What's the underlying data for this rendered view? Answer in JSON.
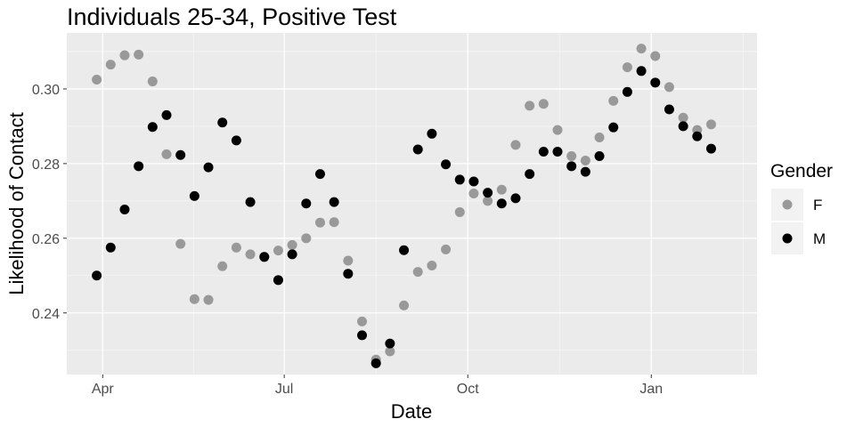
{
  "chart_data": {
    "type": "scatter",
    "title": "Individuals 25-34, Positive Test",
    "xlabel": "Date",
    "ylabel": "Likelihood of Contact",
    "x_ticks": [
      {
        "date": "2020-04-01",
        "label": "Apr"
      },
      {
        "date": "2020-07-01",
        "label": "Jul"
      },
      {
        "date": "2020-10-01",
        "label": "Oct"
      },
      {
        "date": "2021-01-01",
        "label": "Jan"
      }
    ],
    "xlim": [
      "2020-03-14",
      "2021-02-23"
    ],
    "y_ticks": [
      0.24,
      0.26,
      0.28,
      0.3
    ],
    "ylim": [
      0.2235,
      0.315
    ],
    "grid": true,
    "legend": {
      "title": "Gender",
      "position": "right"
    },
    "series": [
      {
        "name": "F",
        "color": "#999999",
        "points": [
          [
            "2020-03-29",
            0.3025
          ],
          [
            "2020-04-05",
            0.3065
          ],
          [
            "2020-04-12",
            0.309
          ],
          [
            "2020-04-19",
            0.3092
          ],
          [
            "2020-04-26",
            0.302
          ],
          [
            "2020-05-03",
            0.2825
          ],
          [
            "2020-05-10",
            0.2585
          ],
          [
            "2020-05-17",
            0.2437
          ],
          [
            "2020-05-24",
            0.2435
          ],
          [
            "2020-05-31",
            0.2525
          ],
          [
            "2020-06-07",
            0.2575
          ],
          [
            "2020-06-14",
            0.2557
          ],
          [
            "2020-06-21",
            0.255
          ],
          [
            "2020-06-28",
            0.2567
          ],
          [
            "2020-07-05",
            0.2582
          ],
          [
            "2020-07-12",
            0.26
          ],
          [
            "2020-07-19",
            0.2642
          ],
          [
            "2020-07-26",
            0.2643
          ],
          [
            "2020-08-02",
            0.254
          ],
          [
            "2020-08-09",
            0.2377
          ],
          [
            "2020-08-16",
            0.2275
          ],
          [
            "2020-08-23",
            0.2297
          ],
          [
            "2020-08-30",
            0.242
          ],
          [
            "2020-09-06",
            0.251
          ],
          [
            "2020-09-13",
            0.2527
          ],
          [
            "2020-09-20",
            0.257
          ],
          [
            "2020-09-27",
            0.267
          ],
          [
            "2020-10-04",
            0.272
          ],
          [
            "2020-10-11",
            0.27
          ],
          [
            "2020-10-18",
            0.273
          ],
          [
            "2020-10-25",
            0.285
          ],
          [
            "2020-11-01",
            0.2955
          ],
          [
            "2020-11-08",
            0.296
          ],
          [
            "2020-11-15",
            0.289
          ],
          [
            "2020-11-22",
            0.282
          ],
          [
            "2020-11-29",
            0.2808
          ],
          [
            "2020-12-06",
            0.287
          ],
          [
            "2020-12-13",
            0.2968
          ],
          [
            "2020-12-20",
            0.3058
          ],
          [
            "2020-12-27",
            0.3108
          ],
          [
            "2021-01-03",
            0.3088
          ],
          [
            "2021-01-10",
            0.3005
          ],
          [
            "2021-01-17",
            0.2923
          ],
          [
            "2021-01-24",
            0.289
          ],
          [
            "2021-01-31",
            0.2905
          ]
        ]
      },
      {
        "name": "M",
        "color": "#000000",
        "points": [
          [
            "2020-03-29",
            0.25
          ],
          [
            "2020-04-05",
            0.2575
          ],
          [
            "2020-04-12",
            0.2677
          ],
          [
            "2020-04-19",
            0.2793
          ],
          [
            "2020-04-26",
            0.2898
          ],
          [
            "2020-05-03",
            0.293
          ],
          [
            "2020-05-10",
            0.2823
          ],
          [
            "2020-05-17",
            0.2713
          ],
          [
            "2020-05-24",
            0.279
          ],
          [
            "2020-05-31",
            0.291
          ],
          [
            "2020-06-07",
            0.2862
          ],
          [
            "2020-06-14",
            0.2697
          ],
          [
            "2020-06-21",
            0.255
          ],
          [
            "2020-06-28",
            0.2488
          ],
          [
            "2020-07-05",
            0.2557
          ],
          [
            "2020-07-12",
            0.2693
          ],
          [
            "2020-07-19",
            0.2772
          ],
          [
            "2020-07-26",
            0.2697
          ],
          [
            "2020-08-02",
            0.2505
          ],
          [
            "2020-08-09",
            0.234
          ],
          [
            "2020-08-16",
            0.2265
          ],
          [
            "2020-08-23",
            0.2318
          ],
          [
            "2020-08-30",
            0.2568
          ],
          [
            "2020-09-06",
            0.2838
          ],
          [
            "2020-09-13",
            0.288
          ],
          [
            "2020-09-20",
            0.2798
          ],
          [
            "2020-09-27",
            0.2757
          ],
          [
            "2020-10-04",
            0.2752
          ],
          [
            "2020-10-11",
            0.2722
          ],
          [
            "2020-10-18",
            0.2693
          ],
          [
            "2020-10-25",
            0.2707
          ],
          [
            "2020-11-01",
            0.2772
          ],
          [
            "2020-11-08",
            0.2832
          ],
          [
            "2020-11-15",
            0.2832
          ],
          [
            "2020-11-22",
            0.2793
          ],
          [
            "2020-11-29",
            0.2778
          ],
          [
            "2020-12-06",
            0.282
          ],
          [
            "2020-12-13",
            0.2897
          ],
          [
            "2020-12-20",
            0.2992
          ],
          [
            "2020-12-27",
            0.3048
          ],
          [
            "2021-01-03",
            0.3017
          ],
          [
            "2021-01-10",
            0.2945
          ],
          [
            "2021-01-17",
            0.29
          ],
          [
            "2021-01-24",
            0.2873
          ],
          [
            "2021-01-31",
            0.284
          ]
        ]
      }
    ]
  }
}
